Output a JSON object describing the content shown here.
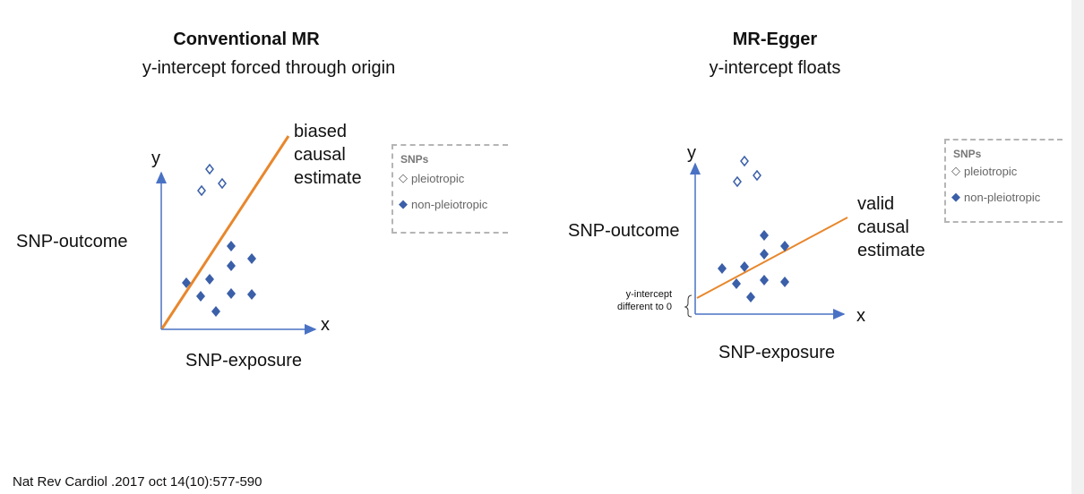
{
  "left": {
    "title": "Conventional MR",
    "subtitle": "y-intercept forced through origin",
    "y_label": "y",
    "x_label": "x",
    "outcome_label": "SNP-outcome",
    "exposure_label": "SNP-exposure",
    "annotation": [
      "biased",
      "causal",
      "estimate"
    ],
    "legend": {
      "header": "SNPs",
      "items": [
        "pleiotropic",
        "non-pleiotropic"
      ]
    }
  },
  "right": {
    "title": "MR-Egger",
    "subtitle": "y-intercept floats",
    "y_label": "y",
    "x_label": "x",
    "outcome_label": "SNP-outcome",
    "exposure_label": "SNP-exposure",
    "annotation": [
      "valid",
      "causal",
      "estimate"
    ],
    "intercept_note": [
      "y-intercept",
      "different to 0"
    ],
    "legend": {
      "header": "SNPs",
      "items": [
        "pleiotropic",
        "non-pleiotropic"
      ]
    }
  },
  "footer": "Nat Rev Cardiol .2017 oct 14(10):577-590",
  "colors": {
    "axis": "#4a72c4",
    "line": "#e8872c",
    "marker": "#3b5fa8"
  }
}
